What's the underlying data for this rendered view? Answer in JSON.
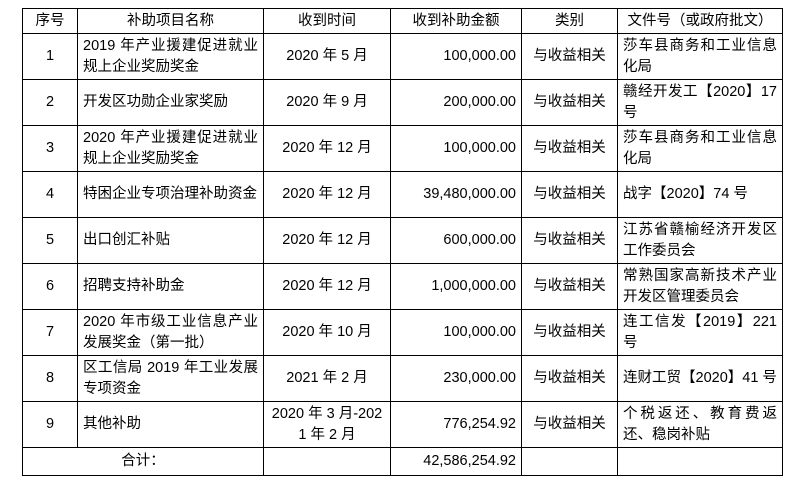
{
  "table": {
    "header": [
      "序号",
      "补助项目名称",
      "收到时间",
      "收到补助金额",
      "类别",
      "文件号（或政府批文）"
    ],
    "rows": [
      [
        "1",
        "2019 年产业援建促进就业规上企业奖励奖金",
        "2020 年 5 月",
        "100,000.00",
        "与收益相关",
        "莎车县商务和工业信息化局"
      ],
      [
        "2",
        "开发区功勋企业家奖励",
        "2020 年 9 月",
        "200,000.00",
        "与收益相关",
        "赣经开发工【2020】17 号"
      ],
      [
        "3",
        "2020 年产业援建促进就业规上企业奖励奖金",
        "2020 年 12 月",
        "100,000.00",
        "与收益相关",
        "莎车县商务和工业信息化局"
      ],
      [
        "4",
        "特困企业专项治理补助资金",
        "2020 年 12 月",
        "39,480,000.00",
        "与收益相关",
        "战字【2020】74 号"
      ],
      [
        "5",
        "出口创汇补贴",
        "2020 年 12 月",
        "600,000.00",
        "与收益相关",
        "江苏省赣榆经济开发区工作委员会"
      ],
      [
        "6",
        "招聘支持补助金",
        "2020 年 12 月",
        "1,000,000.00",
        "与收益相关",
        "常熟国家高新技术产业开发区管理委员会"
      ],
      [
        "7",
        "2020 年市级工业信息产业发展奖金（第一批）",
        "2020 年 10 月",
        "100,000.00",
        "与收益相关",
        "连工信发【2019】221 号"
      ],
      [
        "8",
        "区工信局 2019 年工业发展专项资金",
        "2021 年 2 月",
        "230,000.00",
        "与收益相关",
        "连财工贸【2020】41 号"
      ],
      [
        "9",
        "其他补助",
        "2020 年 3 月-2021 年 2 月",
        "776,254.92",
        "与收益相关",
        "个税返还、教育费返还、稳岗补贴"
      ]
    ],
    "total": {
      "label": "合计：",
      "amount": "42,586,254.92"
    }
  }
}
